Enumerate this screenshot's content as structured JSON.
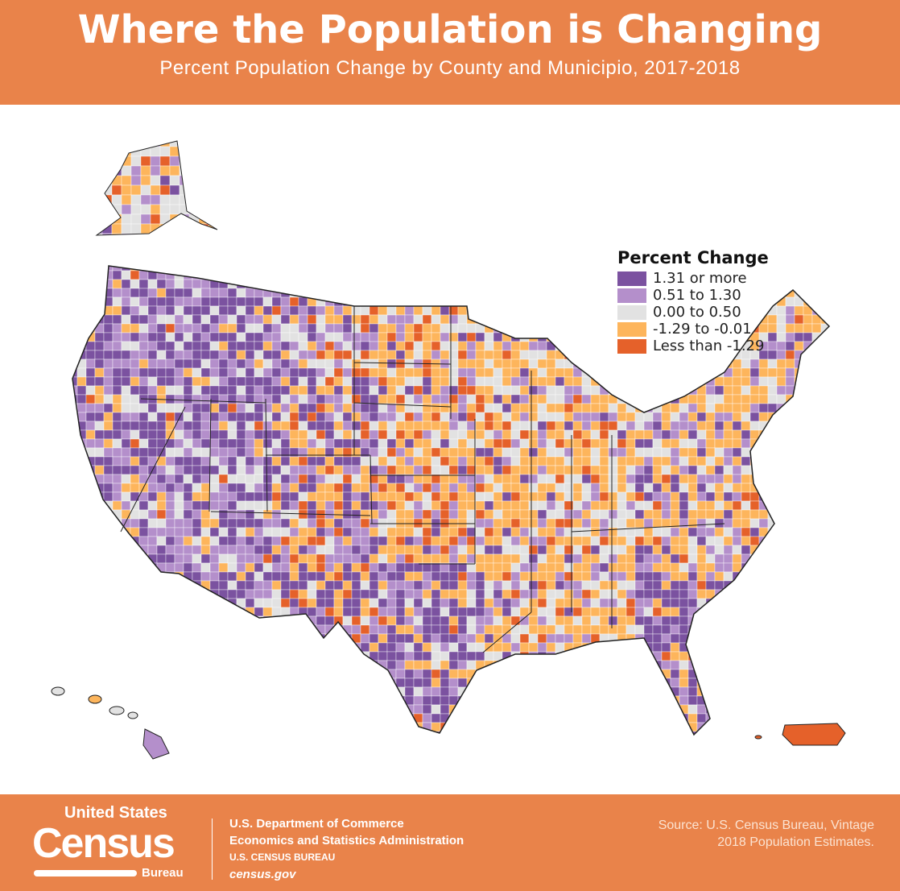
{
  "header": {
    "title": "Where the Population is Changing",
    "subtitle": "Percent Population Change by County and Municipio, 2017-2018"
  },
  "legend": {
    "title": "Percent Change",
    "items": [
      {
        "label": "1.31 or more",
        "color": "#7B52A0"
      },
      {
        "label": "0.51 to 1.30",
        "color": "#B48FCB"
      },
      {
        "label": "0.00 to 0.50",
        "color": "#E2E2E2"
      },
      {
        "label": "-1.29 to -0.01",
        "color": "#FDB55C"
      },
      {
        "label": "Less than -1.29",
        "color": "#E5612A"
      }
    ]
  },
  "footer": {
    "logo_top": "United States",
    "logo_main": "Census",
    "logo_bottom": "Bureau",
    "dept_lines": [
      "U.S. Department of Commerce",
      "Economics and Statistics Administration",
      "U.S. CENSUS BUREAU",
      "census.gov"
    ],
    "source_lines": [
      "Source: U.S. Census Bureau, Vintage",
      "2018 Population Estimates."
    ]
  },
  "colors": {
    "brand": "#E9834A"
  }
}
